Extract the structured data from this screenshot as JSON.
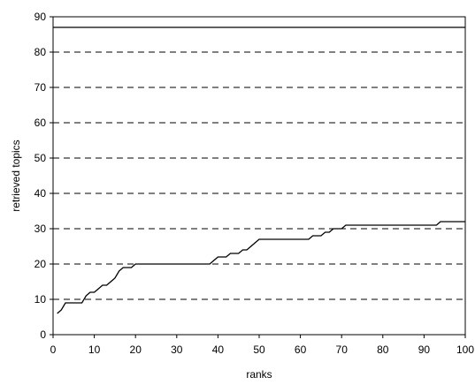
{
  "chart_data": {
    "type": "line",
    "title": "",
    "xlabel": "ranks",
    "ylabel": "retrieved topics",
    "xlim": [
      0,
      100
    ],
    "ylim": [
      0,
      90
    ],
    "xticks": [
      0,
      10,
      20,
      30,
      40,
      50,
      60,
      70,
      80,
      90,
      100
    ],
    "yticks": [
      0,
      10,
      20,
      30,
      40,
      50,
      60,
      70,
      80,
      90
    ],
    "grid": "horizontal dashed",
    "legend": "none",
    "series": [
      {
        "x": [
          0,
          100
        ],
        "y": [
          87,
          87
        ]
      },
      {
        "x": [
          1,
          2,
          3,
          6,
          7,
          8,
          9,
          10,
          11,
          12,
          13,
          14,
          15,
          16,
          17,
          19,
          20,
          21,
          25,
          30,
          35,
          38,
          39,
          40,
          41,
          42,
          43,
          44,
          45,
          46,
          47,
          48,
          49,
          50,
          51,
          55,
          60,
          62,
          63,
          65,
          66,
          67,
          68,
          69,
          70,
          71,
          72,
          75,
          80,
          85,
          90,
          93,
          94,
          100
        ],
        "y": [
          6,
          7,
          9,
          9,
          9,
          11,
          12,
          12,
          13,
          14,
          14,
          15,
          16,
          18,
          19,
          19,
          20,
          20,
          20,
          20,
          20,
          20,
          21,
          22,
          22,
          22,
          23,
          23,
          23,
          24,
          24,
          25,
          26,
          27,
          27,
          27,
          27,
          27,
          28,
          28,
          29,
          29,
          30,
          30,
          30,
          31,
          31,
          31,
          31,
          31,
          31,
          31,
          32,
          32
        ]
      }
    ]
  }
}
